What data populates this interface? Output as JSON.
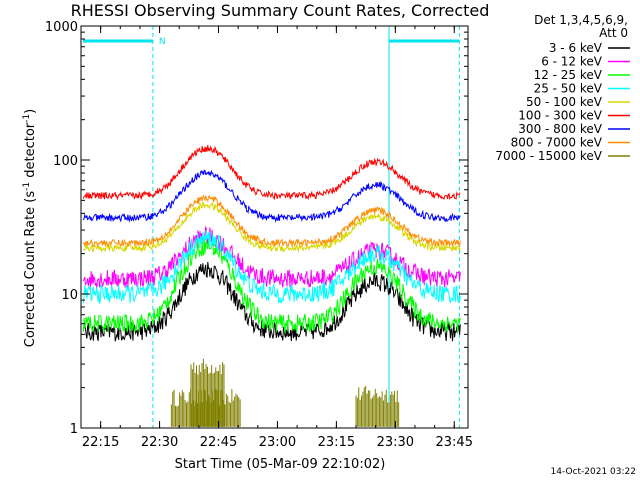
{
  "chart_data": {
    "type": "line",
    "title": "RHESSI Observing Summary Count Rates, Corrected",
    "xlabel": "Start Time (05-Mar-09 22:10:02)",
    "ylabel_main": "Corrected Count Rate (s",
    "ylabel_sup1": "-1",
    "ylabel_mid": " detector",
    "ylabel_sup2": "-1",
    "ylabel_end": ")",
    "ylog": true,
    "ylim": [
      1,
      1000
    ],
    "x_ticks": [
      "22:15",
      "22:30",
      "22:45",
      "23:00",
      "23:15",
      "23:30",
      "23:45"
    ],
    "y_ticks": [
      "1",
      "10",
      "100",
      "1000"
    ],
    "legend_header": [
      "Det 1,3,4,5,6,9,",
      "Att 0"
    ],
    "legend_position": "right",
    "timestamp": "14-Oct-2021 03:22",
    "night_mark_label": "N",
    "series": [
      {
        "name": "3 - 6 keV",
        "color": "#000000",
        "base": 5.2,
        "peaks": [
          15.5,
          12.5
        ]
      },
      {
        "name": "6 - 12 keV",
        "color": "#ff00ff",
        "base": 13,
        "peaks": [
          27,
          21
        ]
      },
      {
        "name": "12 - 25 keV",
        "color": "#00ff00",
        "base": 6,
        "peaks": [
          23,
          16
        ]
      },
      {
        "name": "25 - 50 keV",
        "color": "#00ffff",
        "base": 10,
        "peaks": [
          26,
          20
        ]
      },
      {
        "name": "50 - 100 keV",
        "color": "#d8d800",
        "base": 22,
        "peaks": [
          46,
          38
        ]
      },
      {
        "name": "100 - 300 keV",
        "color": "#ff0000",
        "base": 54,
        "peaks": [
          122,
          97
        ]
      },
      {
        "name": "300 - 800 keV",
        "color": "#0000ff",
        "base": 37,
        "peaks": [
          80,
          65
        ]
      },
      {
        "name": "800 - 7000 keV",
        "color": "#ff8c00",
        "base": 24,
        "peaks": [
          52,
          42
        ]
      },
      {
        "name": "7000 - 15000 keV",
        "color": "#808000",
        "base": null,
        "peaks": []
      }
    ]
  }
}
